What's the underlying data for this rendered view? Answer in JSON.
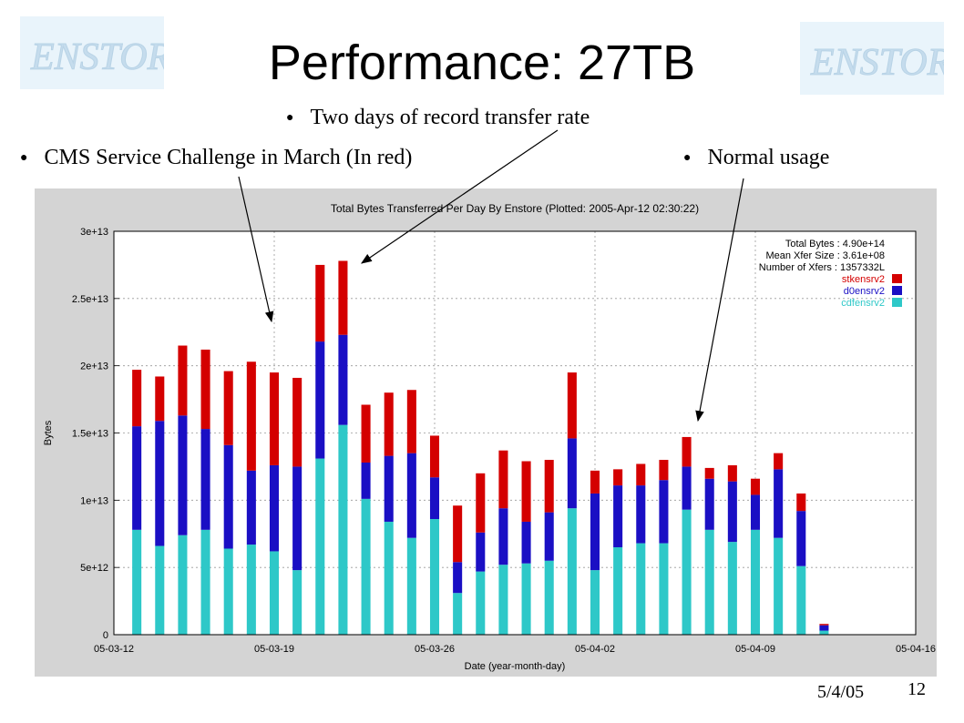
{
  "title": "Performance: 27TB",
  "bullets": {
    "two_days": "Two days of record transfer rate",
    "cms": "CMS Service Challenge in March (In red)",
    "normal": "Normal usage"
  },
  "logo_text": "ENSTORE",
  "footer": {
    "date": "5/4/05",
    "page": "12"
  },
  "chart_data": {
    "type": "bar",
    "stacked": true,
    "title": "Total Bytes Transferred Per Day By Enstore (Plotted: 2005-Apr-12 02:30:22)",
    "xlabel": "Date (year-month-day)",
    "ylabel": "Bytes",
    "ylim": [
      0,
      30000000000000.0
    ],
    "yticks": [
      0,
      5000000000000.0,
      10000000000000.0,
      15000000000000.0,
      20000000000000.0,
      25000000000000.0,
      30000000000000.0
    ],
    "ytick_labels": [
      "0",
      "5e+12",
      "1e+13",
      "1.5e+13",
      "2e+13",
      "2.5e+13",
      "3e+13"
    ],
    "xlim": [
      0,
      35
    ],
    "xticks": [
      0,
      7,
      14,
      21,
      28,
      35
    ],
    "xtick_labels": [
      "05-03-12",
      "05-03-19",
      "05-03-26",
      "05-04-02",
      "05-04-09",
      "05-04-16"
    ],
    "grid": true,
    "legend_position": "top-right",
    "stats": [
      "Total Bytes : 4.90e+14",
      "Mean Xfer Size : 3.61e+08",
      "Number of Xfers : 1357332L"
    ],
    "colors": {
      "stkensrv2": "#d40000",
      "d0ensrv2": "#1a0fc4",
      "cdfensrv2": "#2ec8c8"
    },
    "series": [
      {
        "name": "cdfensrv2",
        "values": [
          7800000000000.0,
          6600000000000.0,
          7400000000000.0,
          7800000000000.0,
          6400000000000.0,
          6700000000000.0,
          6200000000000.0,
          4800000000000.0,
          13100000000000.0,
          15600000000000.0,
          10100000000000.0,
          8400000000000.0,
          7200000000000.0,
          8600000000000.0,
          3100000000000.0,
          4700000000000.0,
          5200000000000.0,
          5300000000000.0,
          5500000000000.0,
          9400000000000.0,
          4800000000000.0,
          6500000000000.0,
          6800000000000.0,
          6800000000000.0,
          9300000000000.0,
          7800000000000.0,
          6900000000000.0,
          7800000000000.0,
          7200000000000.0,
          5100000000000.0,
          300000000000.0
        ]
      },
      {
        "name": "d0ensrv2",
        "values": [
          7700000000000.0,
          9300000000000.0,
          8900000000000.0,
          7500000000000.0,
          7700000000000.0,
          5500000000000.0,
          6400000000000.0,
          7700000000000.0,
          8700000000000.0,
          6700000000000.0,
          2700000000000.0,
          4900000000000.0,
          6300000000000.0,
          3100000000000.0,
          2300000000000.0,
          2900000000000.0,
          4200000000000.0,
          3100000000000.0,
          3600000000000.0,
          5200000000000.0,
          5700000000000.0,
          4600000000000.0,
          4300000000000.0,
          4700000000000.0,
          3200000000000.0,
          3800000000000.0,
          4500000000000.0,
          2600000000000.0,
          5100000000000.0,
          4100000000000.0,
          400000000000.0
        ]
      },
      {
        "name": "stkensrv2",
        "values": [
          4200000000000.0,
          3300000000000.0,
          5200000000000.0,
          5900000000000.0,
          5500000000000.0,
          8100000000000.0,
          6900000000000.0,
          6600000000000.0,
          5700000000000.0,
          5500000000000.0,
          4300000000000.0,
          4700000000000.0,
          4700000000000.0,
          3100000000000.0,
          4200000000000.0,
          4400000000000.0,
          4300000000000.0,
          4500000000000.0,
          3900000000000.0,
          4900000000000.0,
          1700000000000.0,
          1200000000000.0,
          1600000000000.0,
          1500000000000.0,
          2200000000000.0,
          800000000000.0,
          1200000000000.0,
          1200000000000.0,
          1200000000000.0,
          1300000000000.0,
          100000000000.0
        ]
      }
    ]
  }
}
